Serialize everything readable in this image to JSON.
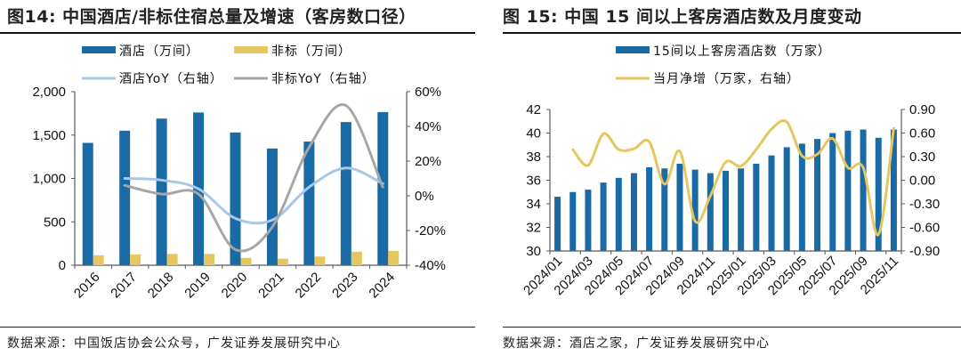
{
  "colors": {
    "hotel_bar": "#1A6AA6",
    "nonstd_bar": "#E5C65F",
    "hotel_yoy": "#A9C8E6",
    "nonstd_yoy": "#A6A6A6",
    "net_increase": "#E5C65F",
    "axis": "#595959"
  },
  "left": {
    "title": "图14:  中国酒店/非标住宿总量及增速（客房数口径）",
    "source": "数据来源：中国饭店协会公众号，广发证券发展研究中心"
  },
  "right": {
    "title": "图 15:  中国 15 间以上客房酒店数及月度变动",
    "source": "数据来源：酒店之家，广发证券发展研究中心"
  },
  "chart_data": [
    {
      "type": "bar",
      "title": "中国酒店/非标住宿总量及增速（客房数口径）",
      "categories": [
        "2016",
        "2017",
        "2018",
        "2019",
        "2020",
        "2021",
        "2022",
        "2023",
        "2024"
      ],
      "series": [
        {
          "name": "酒店（万间）",
          "type": "bar",
          "axis": "left",
          "values": [
            1410,
            1550,
            1690,
            1760,
            1530,
            1345,
            1425,
            1650,
            1765
          ]
        },
        {
          "name": "非标（万间）",
          "type": "bar",
          "axis": "left",
          "values": [
            115,
            125,
            130,
            130,
            85,
            75,
            100,
            155,
            165
          ]
        },
        {
          "name": "酒店YoY（右轴）",
          "type": "line",
          "axis": "right",
          "values": [
            null,
            10,
            9,
            4,
            -13,
            -14,
            5,
            16,
            7
          ]
        },
        {
          "name": "非标YoY（右轴）",
          "type": "line",
          "axis": "right",
          "values": [
            null,
            6,
            1,
            1,
            -31,
            -18,
            28,
            52,
            5
          ]
        }
      ],
      "y_left": {
        "min": 0,
        "max": 2000,
        "ticks": [
          0,
          500,
          1000,
          1500,
          2000
        ],
        "tick_labels": [
          "0",
          "500",
          "1,000",
          "1,500",
          "2,000"
        ]
      },
      "y_right": {
        "min": -40,
        "max": 60,
        "ticks": [
          -40,
          -20,
          0,
          20,
          40,
          60
        ],
        "tick_labels": [
          "-40%",
          "-20%",
          "0%",
          "20%",
          "40%",
          "60%"
        ]
      },
      "xlabel": "",
      "ylabel": "",
      "legend": "top",
      "grid": false
    },
    {
      "type": "bar",
      "title": "中国15间以上客房酒店数及月度变动",
      "categories": [
        "2024/01",
        "2024/02",
        "2024/03",
        "2024/04",
        "2024/05",
        "2024/06",
        "2024/07",
        "2024/08",
        "2024/09",
        "2024/10",
        "2024/11",
        "2024/12",
        "2025/01",
        "2025/02",
        "2025/03",
        "2025/04",
        "2025/05",
        "2025/06",
        "2025/07",
        "2025/08",
        "2025/09",
        "2025/10",
        "2025/11"
      ],
      "tick_labels": [
        "2024/01",
        "2024/03",
        "2024/05",
        "2024/07",
        "2024/09",
        "2024/11",
        "2025/01",
        "2025/03",
        "2025/05",
        "2025/07",
        "2025/09",
        "2025/11"
      ],
      "series": [
        {
          "name": "15间以上客房酒店数（万家）",
          "type": "bar",
          "axis": "left",
          "values": [
            34.6,
            35.0,
            35.2,
            35.8,
            36.2,
            36.6,
            37.1,
            37.0,
            37.4,
            36.9,
            36.6,
            36.8,
            37.0,
            37.4,
            38.1,
            38.8,
            39.1,
            39.5,
            40.0,
            40.2,
            40.3,
            39.6,
            40.3
          ]
        },
        {
          "name": "当月净增（万家，右轴）",
          "type": "line",
          "axis": "right",
          "values": [
            null,
            0.39,
            0.19,
            0.59,
            0.39,
            0.4,
            0.49,
            -0.05,
            0.37,
            -0.52,
            -0.2,
            0.23,
            0.18,
            0.39,
            0.65,
            0.74,
            0.31,
            0.33,
            0.53,
            0.16,
            0.16,
            -0.69,
            0.66
          ]
        }
      ],
      "y_left": {
        "min": 30,
        "max": 42,
        "ticks": [
          30,
          32,
          34,
          36,
          38,
          40,
          42
        ],
        "tick_labels": [
          "30",
          "32",
          "34",
          "36",
          "38",
          "40",
          "42"
        ]
      },
      "y_right": {
        "min": -0.9,
        "max": 0.9,
        "ticks": [
          -0.9,
          -0.6,
          -0.3,
          0,
          0.3,
          0.6,
          0.9
        ],
        "tick_labels": [
          "-0.90",
          "-0.60",
          "-0.30",
          "0.00",
          "0.30",
          "0.60",
          "0.90"
        ]
      },
      "xlabel": "",
      "ylabel": "",
      "legend": "top",
      "grid": false
    }
  ]
}
